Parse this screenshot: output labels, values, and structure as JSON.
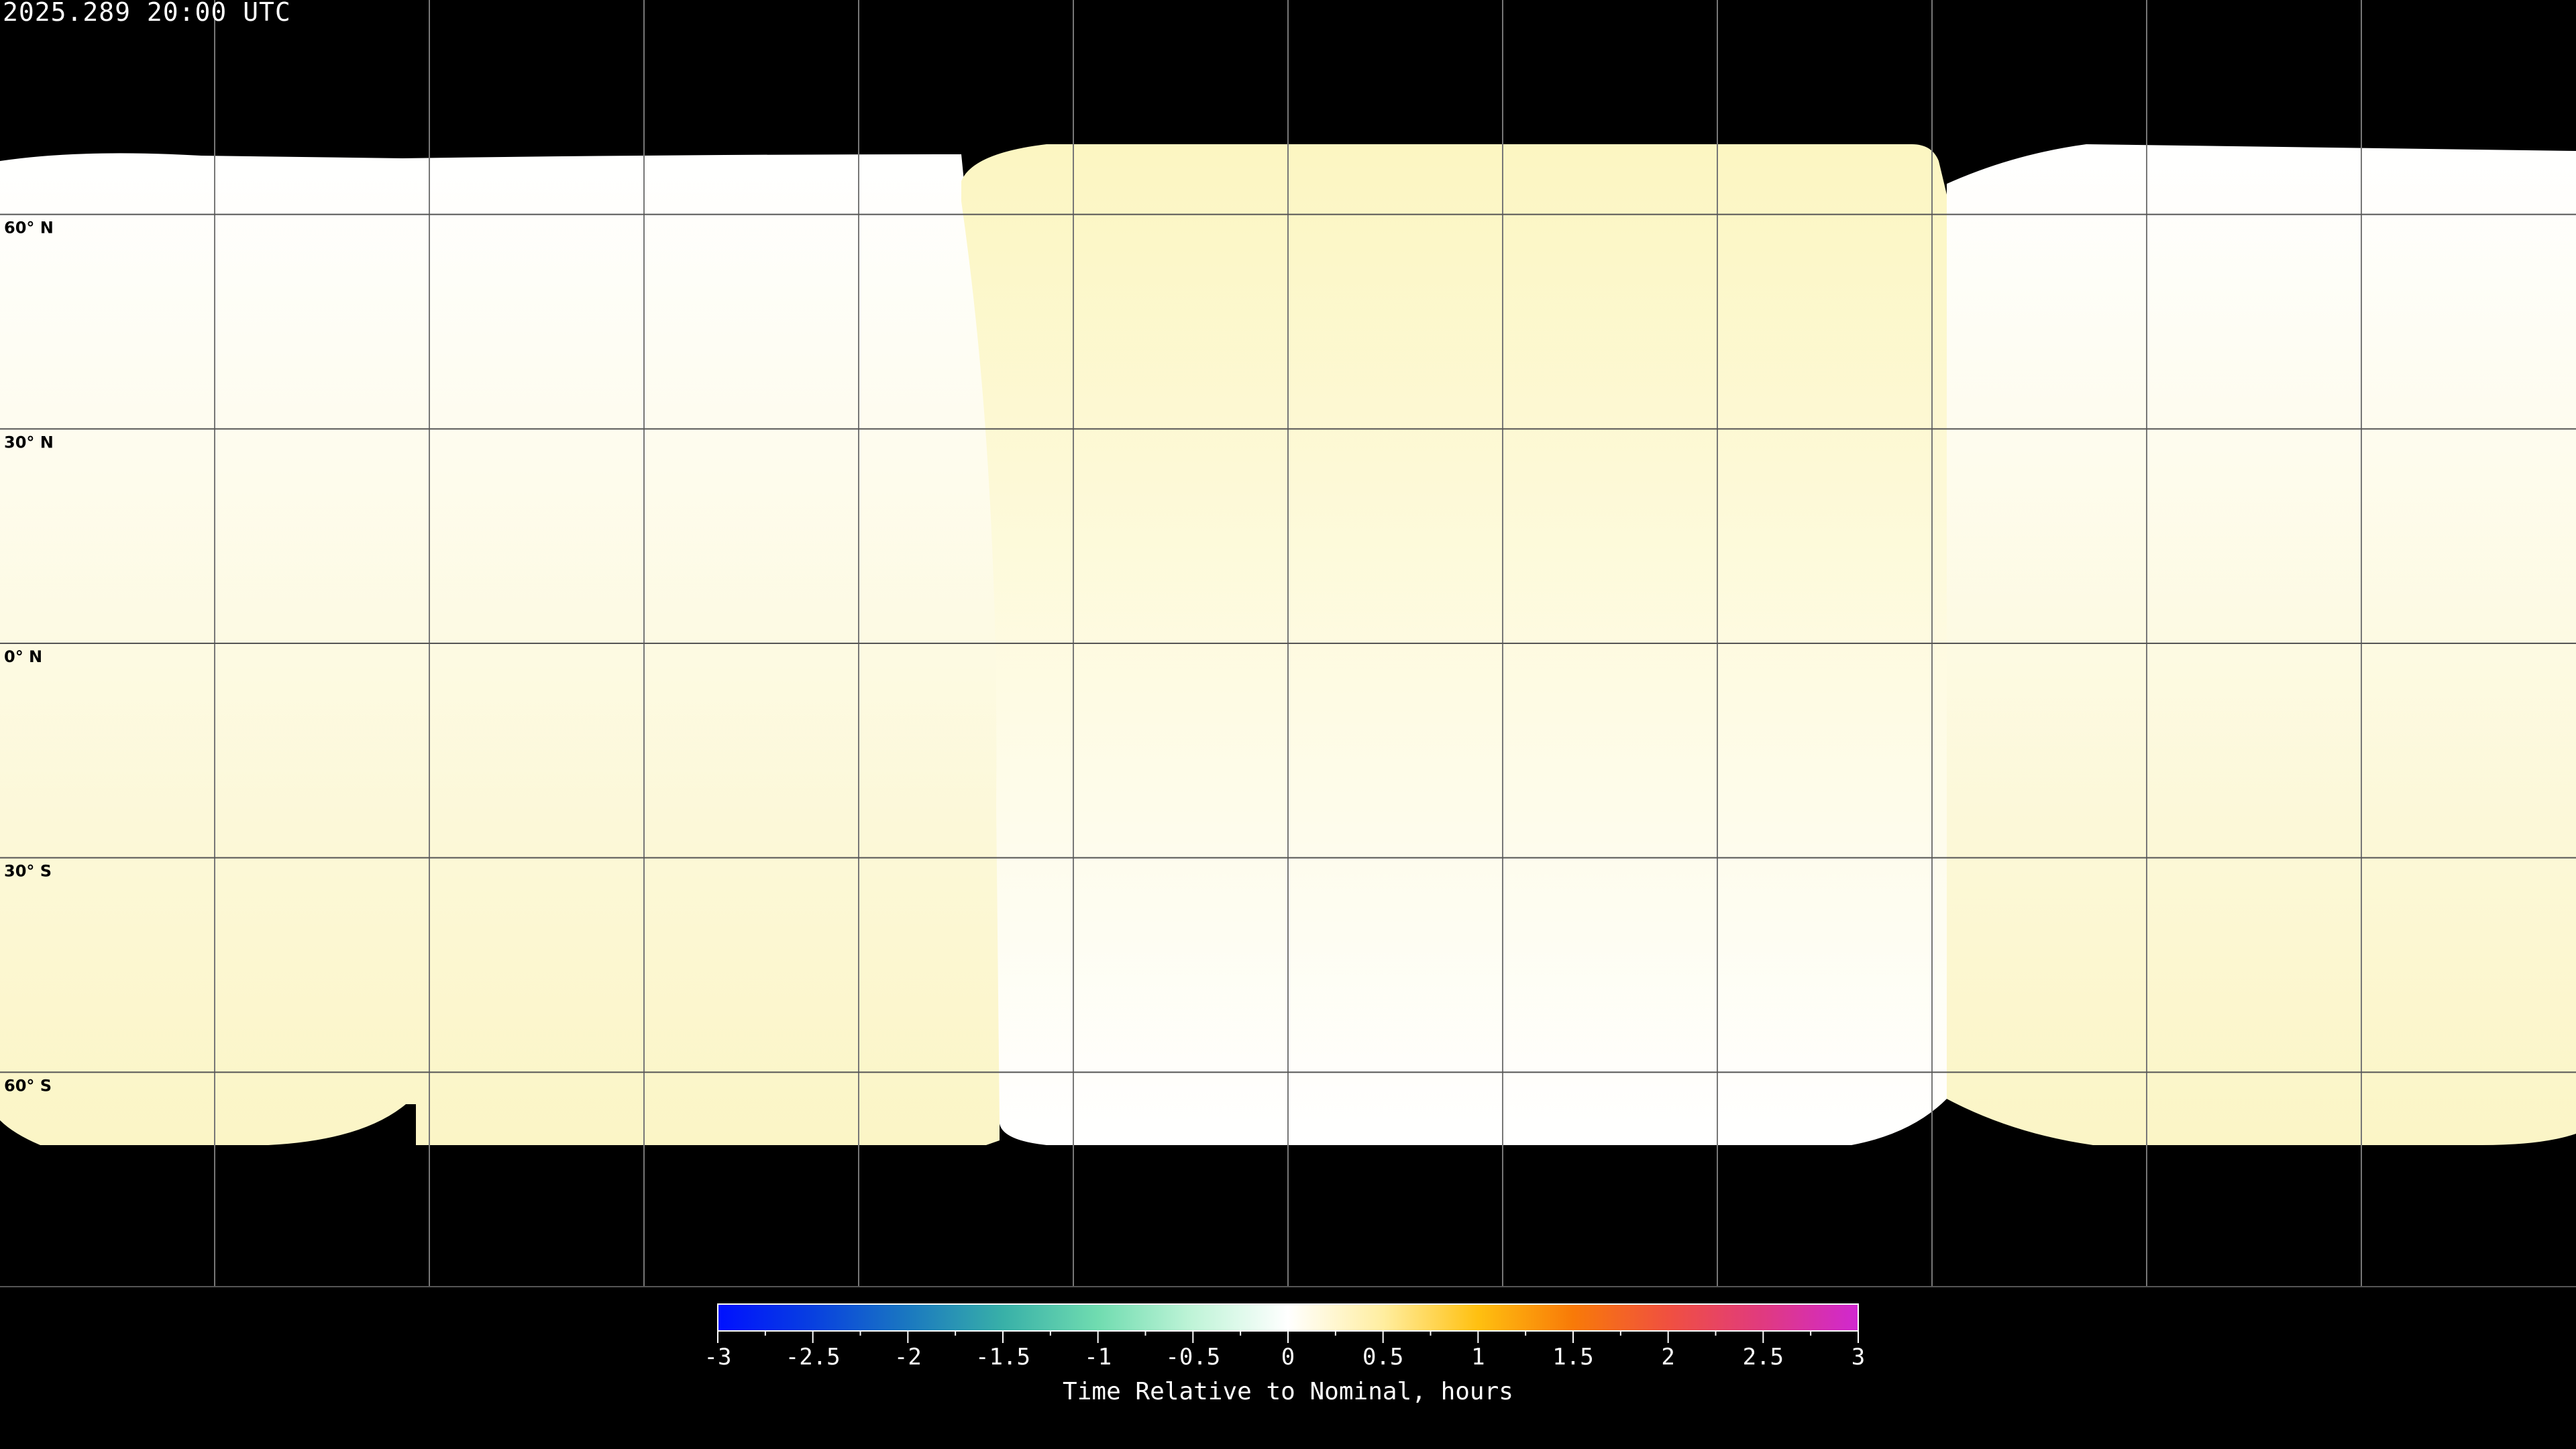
{
  "title": "2025.289 20:00 UTC",
  "latitude_labels": [
    "60° N",
    "30° N",
    "0° N",
    "30° S",
    "60° S"
  ],
  "latitudes": [
    60,
    30,
    0,
    -30,
    -60
  ],
  "longitudes": [
    -150,
    -120,
    -90,
    -60,
    -30,
    0,
    30,
    60,
    90,
    120,
    150
  ],
  "colors": {
    "background": "#000000",
    "grid": "#000000",
    "coverage_white": "#ffffff",
    "coverage_yellow": "#fbf5c6"
  },
  "colorbar": {
    "label": "Time Relative to Nominal, hours",
    "range": [
      -3,
      3
    ],
    "tick_labels": [
      "-3",
      "-2.5",
      "-2",
      "-1.5",
      "-1",
      "-0.5",
      "0",
      "0.5",
      "1",
      "1.5",
      "2",
      "2.5",
      "3"
    ],
    "colormap": [
      {
        "value": -3,
        "color": "#0010ff"
      },
      {
        "value": -2.5,
        "color": "#0840e0"
      },
      {
        "value": -2,
        "color": "#1a78c0"
      },
      {
        "value": -1.5,
        "color": "#38b0a8"
      },
      {
        "value": -1,
        "color": "#70dcb0"
      },
      {
        "value": -0.5,
        "color": "#c0f4d8"
      },
      {
        "value": 0,
        "color": "#ffffff"
      },
      {
        "value": 0.5,
        "color": "#ffeea0"
      },
      {
        "value": 1,
        "color": "#ffc010"
      },
      {
        "value": 1.5,
        "color": "#f87a08"
      },
      {
        "value": 2,
        "color": "#f05040"
      },
      {
        "value": 2.5,
        "color": "#e03a80"
      },
      {
        "value": 3,
        "color": "#d028d0"
      }
    ]
  }
}
